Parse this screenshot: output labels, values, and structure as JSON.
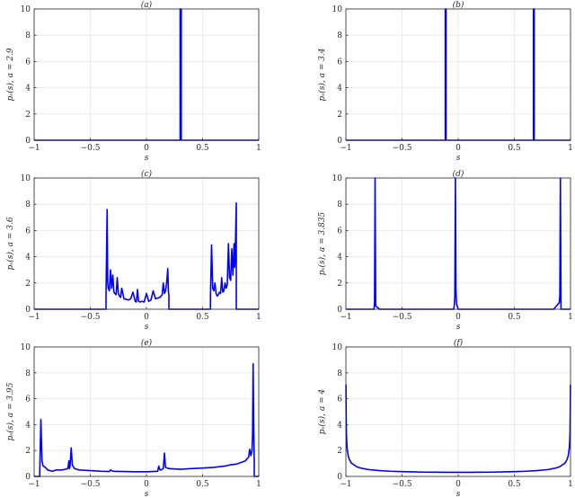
{
  "figure": {
    "background": "#ffffff",
    "line_color": "#0000ff"
  },
  "chart_data": [
    {
      "type": "line",
      "title": "(a)",
      "xlabel": "s",
      "ylabel": "pₛ(s), a = 2.9",
      "xlim": [
        -1,
        1
      ],
      "ylim": [
        0,
        10
      ],
      "grid": true,
      "xticks": [
        -1,
        -0.5,
        0,
        0.5,
        1
      ],
      "xtick_labels": [
        "−1",
        "−0.5",
        "0",
        "0.5",
        "1"
      ],
      "yticks": [
        0,
        2,
        4,
        6,
        8,
        10
      ],
      "ytick_labels": [
        "0",
        "2",
        "4",
        "6",
        "8",
        "10"
      ],
      "series": [
        {
          "x": [
            -1,
            0.3,
            0.3,
            0.31,
            0.31,
            1
          ],
          "y": [
            0,
            0,
            10,
            10,
            0,
            0
          ]
        }
      ]
    },
    {
      "type": "line",
      "title": "(b)",
      "xlabel": "s",
      "ylabel": "pₛ(s), a = 3.4",
      "xlim": [
        -1,
        1
      ],
      "ylim": [
        0,
        10
      ],
      "grid": true,
      "xticks": [
        -1,
        -0.5,
        0,
        0.5,
        1
      ],
      "xtick_labels": [
        "−1",
        "−0.5",
        "0",
        "0.5",
        "1"
      ],
      "yticks": [
        0,
        2,
        4,
        6,
        8,
        10
      ],
      "ytick_labels": [
        "0",
        "2",
        "4",
        "6",
        "8",
        "10"
      ],
      "series": [
        {
          "x": [
            -1,
            -0.115,
            -0.115,
            -0.108,
            -0.108,
            0.67,
            0.67,
            0.677,
            0.677,
            1
          ],
          "y": [
            0,
            0,
            10,
            10,
            0,
            0,
            10,
            10,
            0,
            0
          ]
        }
      ]
    },
    {
      "type": "line",
      "title": "(c)",
      "xlabel": "s",
      "ylabel": "pₛ(s), a = 3.6",
      "xlim": [
        -1,
        1
      ],
      "ylim": [
        0,
        10
      ],
      "grid": true,
      "xticks": [
        -1,
        -0.5,
        0,
        0.5,
        1
      ],
      "xtick_labels": [
        "−1",
        "−0.5",
        "0",
        "0.5",
        "1"
      ],
      "yticks": [
        0,
        2,
        4,
        6,
        8,
        10
      ],
      "ytick_labels": [
        "0",
        "2",
        "4",
        "6",
        "8",
        "10"
      ],
      "series": [
        {
          "x": [
            -1,
            -0.36,
            -0.36,
            -0.35,
            -0.345,
            -0.34,
            -0.33,
            -0.32,
            -0.31,
            -0.3,
            -0.29,
            -0.28,
            -0.27,
            -0.26,
            -0.25,
            -0.24,
            -0.23,
            -0.22,
            -0.2,
            -0.18,
            -0.16,
            -0.14,
            -0.12,
            -0.1,
            -0.09,
            -0.08,
            -0.07,
            -0.06,
            -0.04,
            -0.02,
            0.0,
            0.02,
            0.04,
            0.06,
            0.08,
            0.1,
            0.12,
            0.14,
            0.15,
            0.16,
            0.17,
            0.18,
            0.19,
            0.195,
            0.2,
            0.2,
            0.57,
            0.57,
            0.58,
            0.59,
            0.6,
            0.61,
            0.62,
            0.63,
            0.64,
            0.65,
            0.66,
            0.67,
            0.68,
            0.69,
            0.7,
            0.71,
            0.72,
            0.73,
            0.74,
            0.75,
            0.76,
            0.77,
            0.78,
            0.785,
            0.79,
            0.8,
            0.8,
            1
          ],
          "y": [
            0,
            0,
            1.0,
            7.6,
            2.0,
            1.6,
            1.4,
            3.0,
            1.6,
            2.6,
            1.3,
            1.2,
            1.1,
            2.4,
            1.2,
            1.0,
            0.9,
            1.6,
            0.8,
            0.75,
            0.7,
            0.8,
            1.3,
            0.6,
            0.55,
            1.5,
            0.6,
            0.55,
            0.6,
            0.55,
            1.2,
            0.6,
            0.7,
            1.4,
            0.8,
            0.85,
            0.9,
            1.1,
            2.0,
            1.2,
            1.4,
            2.0,
            3.1,
            1.5,
            1.0,
            0,
            0,
            1.0,
            4.9,
            1.6,
            1.4,
            2.0,
            1.2,
            1.0,
            1.1,
            1.3,
            1.2,
            2.4,
            1.3,
            1.4,
            2.0,
            1.6,
            1.9,
            5.0,
            2.4,
            2.2,
            4.6,
            2.6,
            5.0,
            3.2,
            4.0,
            8.1,
            0,
            0
          ]
        }
      ]
    },
    {
      "type": "line",
      "title": "(d)",
      "xlabel": "s",
      "ylabel": "pₛ(s), a = 3.835",
      "xlim": [
        -1,
        1
      ],
      "ylim": [
        0,
        10
      ],
      "grid": true,
      "xticks": [
        -1,
        -0.5,
        0,
        0.5,
        1
      ],
      "xtick_labels": [
        "−1",
        "−0.5",
        "0",
        "0.5",
        "1"
      ],
      "yticks": [
        0,
        2,
        4,
        6,
        8,
        10
      ],
      "ytick_labels": [
        "0",
        "2",
        "4",
        "6",
        "8",
        "10"
      ],
      "series": [
        {
          "x": [
            -1,
            -0.75,
            -0.745,
            -0.74,
            -0.735,
            -0.7,
            -0.04,
            -0.035,
            -0.03,
            -0.025,
            -0.02,
            -0.015,
            0.0,
            0.5,
            0.85,
            0.88,
            0.9,
            0.905,
            0.91,
            0.915,
            1
          ],
          "y": [
            0,
            0,
            0.5,
            10,
            0.25,
            0,
            0,
            0.3,
            1.0,
            10,
            1.5,
            0.4,
            0,
            0,
            0,
            0.3,
            0.5,
            1.0,
            10,
            0,
            0
          ]
        }
      ]
    },
    {
      "type": "line",
      "title": "(e)",
      "xlabel": "s",
      "ylabel": "pₛ(s), a = 3.95",
      "xlim": [
        -1,
        1
      ],
      "ylim": [
        0,
        10
      ],
      "grid": true,
      "xticks": [
        -1,
        -0.5,
        0,
        0.5,
        1
      ],
      "xtick_labels": [
        "−1",
        "−0.5",
        "0",
        "0.5",
        "1"
      ],
      "yticks": [
        0,
        2,
        4,
        6,
        8,
        10
      ],
      "ytick_labels": [
        "0",
        "2",
        "4",
        "6",
        "8",
        "10"
      ],
      "series": [
        {
          "x": [
            -1,
            -0.95,
            -0.95,
            -0.94,
            -0.93,
            -0.92,
            -0.9,
            -0.88,
            -0.86,
            -0.84,
            -0.82,
            -0.8,
            -0.75,
            -0.7,
            -0.69,
            -0.685,
            -0.68,
            -0.67,
            -0.66,
            -0.655,
            -0.65,
            -0.64,
            -0.6,
            -0.5,
            -0.4,
            -0.33,
            -0.32,
            -0.3,
            -0.2,
            -0.1,
            0.0,
            0.05,
            0.1,
            0.11,
            0.12,
            0.13,
            0.15,
            0.16,
            0.17,
            0.2,
            0.3,
            0.4,
            0.5,
            0.6,
            0.7,
            0.75,
            0.8,
            0.85,
            0.88,
            0.9,
            0.91,
            0.92,
            0.93,
            0.94,
            0.945,
            0.95,
            0.955,
            0.96,
            0.96,
            1
          ],
          "y": [
            0,
            0,
            0.4,
            4.4,
            1.2,
            0.8,
            0.7,
            0.5,
            0.45,
            0.4,
            0.45,
            0.5,
            0.5,
            0.6,
            1.2,
            0.6,
            0.8,
            2.2,
            0.9,
            0.8,
            0.75,
            0.6,
            0.5,
            0.45,
            0.4,
            0.38,
            0.5,
            0.4,
            0.38,
            0.36,
            0.36,
            0.38,
            0.4,
            0.8,
            0.5,
            0.5,
            0.6,
            1.8,
            0.7,
            0.6,
            0.55,
            0.6,
            0.65,
            0.7,
            0.8,
            0.9,
            0.95,
            1.1,
            1.2,
            1.4,
            1.5,
            2.1,
            1.6,
            2.0,
            3.2,
            8.7,
            4.0,
            1.0,
            0,
            0
          ]
        }
      ]
    },
    {
      "type": "line",
      "title": "(f)",
      "xlabel": "s",
      "ylabel": "pₛ(s), a = 4",
      "xlim": [
        -1,
        1
      ],
      "ylim": [
        0,
        10
      ],
      "grid": true,
      "xticks": [
        -1,
        -0.5,
        0,
        0.5,
        1
      ],
      "xtick_labels": [
        "−1",
        "−0.5",
        "0",
        "0.5",
        "1"
      ],
      "yticks": [
        0,
        2,
        4,
        6,
        8,
        10
      ],
      "ytick_labels": [
        "0",
        "2",
        "4",
        "6",
        "8",
        "10"
      ],
      "series": [
        {
          "x": [
            -0.9995,
            -0.998,
            -0.995,
            -0.99,
            -0.98,
            -0.97,
            -0.95,
            -0.9,
            -0.85,
            -0.8,
            -0.7,
            -0.6,
            -0.5,
            -0.4,
            -0.3,
            -0.2,
            -0.1,
            0.0,
            0.1,
            0.2,
            0.3,
            0.4,
            0.5,
            0.6,
            0.7,
            0.8,
            0.85,
            0.9,
            0.95,
            0.97,
            0.98,
            0.99,
            0.995,
            0.998,
            0.9995
          ],
          "y": [
            7.1,
            5.1,
            3.2,
            2.26,
            1.61,
            1.32,
            1.02,
            0.73,
            0.61,
            0.53,
            0.45,
            0.4,
            0.37,
            0.35,
            0.33,
            0.325,
            0.32,
            0.318,
            0.32,
            0.325,
            0.33,
            0.35,
            0.37,
            0.4,
            0.45,
            0.53,
            0.61,
            0.73,
            1.02,
            1.32,
            1.61,
            2.26,
            3.2,
            5.1,
            7.1
          ]
        }
      ]
    }
  ]
}
